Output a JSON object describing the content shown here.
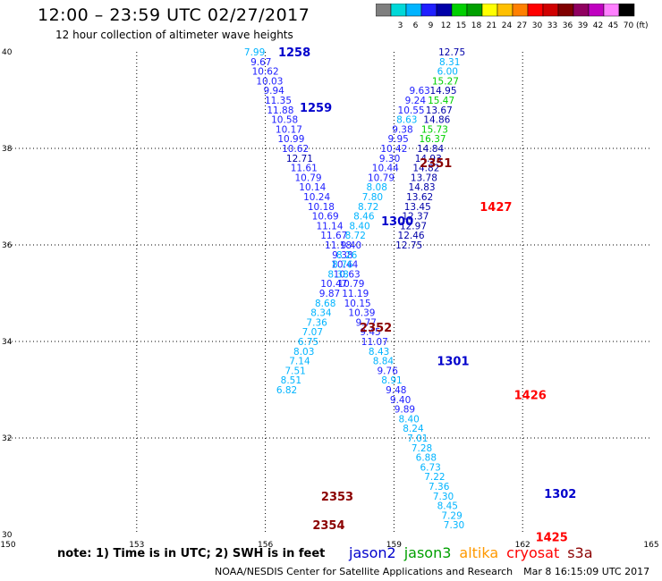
{
  "header": {
    "title": "12:00 – 23:59 UTC 02/27/2017",
    "subtitle": "12 hour collection of altimeter wave heights"
  },
  "colorbar": {
    "unit": "(ft)",
    "swatches": [
      {
        "label": "",
        "color": "#7f7f7f"
      },
      {
        "label": "3",
        "color": "#00d8d8"
      },
      {
        "label": "6",
        "color": "#00b4ff"
      },
      {
        "label": "9",
        "color": "#2020ff"
      },
      {
        "label": "12",
        "color": "#0000a8"
      },
      {
        "label": "15",
        "color": "#00d000"
      },
      {
        "label": "18",
        "color": "#00a000"
      },
      {
        "label": "21",
        "color": "#ffff00"
      },
      {
        "label": "24",
        "color": "#ffc000"
      },
      {
        "label": "27",
        "color": "#ff8000"
      },
      {
        "label": "30",
        "color": "#ff0000"
      },
      {
        "label": "33",
        "color": "#d00000"
      },
      {
        "label": "36",
        "color": "#800000"
      },
      {
        "label": "39",
        "color": "#900060"
      },
      {
        "label": "42",
        "color": "#c000c0"
      },
      {
        "label": "45",
        "color": "#ff80ff"
      },
      {
        "label": "70",
        "color": "#000000"
      }
    ]
  },
  "footer": {
    "note": "note: 1) Time is in UTC; 2) SWH is in feet",
    "satellites": [
      {
        "name": "jason2",
        "color": "#0000cc"
      },
      {
        "name": "jason3",
        "color": "#00a000"
      },
      {
        "name": "altika",
        "color": "#ff9900"
      },
      {
        "name": "cryosat",
        "color": "#ff0000"
      },
      {
        "name": "s3a",
        "color": "#8b0000"
      }
    ],
    "credit": "NOAA/NESDIS Center for Satellite Applications and Research",
    "generated": "Mar  8 16:15:09 UTC 2017"
  },
  "chart_data": {
    "type": "scatter",
    "title": "12:00 – 23:59 UTC 02/27/2017",
    "subtitle": "12 hour collection of altimeter wave heights",
    "xlim": [
      150,
      165
    ],
    "ylim": [
      30,
      40
    ],
    "x_ticks": [
      150,
      153,
      156,
      159,
      162,
      165
    ],
    "y_ticks": [
      30,
      32,
      34,
      36,
      38,
      40
    ],
    "grid": "dotted",
    "color_scale": {
      "bounds": [
        3,
        6,
        9,
        12,
        15,
        18,
        21,
        24,
        27,
        30,
        33,
        36,
        39,
        42,
        45,
        70
      ],
      "colors": [
        "#7f7f7f",
        "#00d8d8",
        "#00b4ff",
        "#2020ff",
        "#0000a8",
        "#00d000",
        "#00a000",
        "#ffff00",
        "#ffc000",
        "#ff8000",
        "#ff0000",
        "#d00000",
        "#800000",
        "#900060",
        "#c000c0",
        "#ff80ff",
        "#000000"
      ]
    },
    "pass_labels": [
      {
        "text": "1258",
        "x": 156.3,
        "y": 40.0,
        "satellite": "jason2"
      },
      {
        "text": "1259",
        "x": 156.8,
        "y": 38.85,
        "satellite": "jason2"
      },
      {
        "text": "1300",
        "x": 158.7,
        "y": 36.5,
        "satellite": "jason2"
      },
      {
        "text": "1301",
        "x": 160.0,
        "y": 33.6,
        "satellite": "jason2"
      },
      {
        "text": "1302",
        "x": 162.5,
        "y": 30.85,
        "satellite": "jason2"
      },
      {
        "text": "1426",
        "x": 161.8,
        "y": 32.9,
        "satellite": "cryosat"
      },
      {
        "text": "1427",
        "x": 161.0,
        "y": 36.8,
        "satellite": "cryosat"
      },
      {
        "text": "1425",
        "x": 162.3,
        "y": 29.95,
        "satellite": "cryosat"
      },
      {
        "text": "2351",
        "x": 159.6,
        "y": 37.7,
        "satellite": "s3a"
      },
      {
        "text": "2352",
        "x": 158.2,
        "y": 34.3,
        "satellite": "s3a"
      },
      {
        "text": "2353",
        "x": 157.3,
        "y": 30.8,
        "satellite": "s3a"
      },
      {
        "text": "2354",
        "x": 157.1,
        "y": 30.2,
        "satellite": "s3a"
      }
    ],
    "series": [
      {
        "name": "jason2 pass 1258/1259",
        "satellite": "jason2",
        "points": [
          {
            "x": 155.75,
            "y": 40.0,
            "v": 7.99
          },
          {
            "x": 155.9,
            "y": 39.8,
            "v": 9.67
          },
          {
            "x": 156.0,
            "y": 39.6,
            "v": 10.62
          },
          {
            "x": 156.1,
            "y": 39.4,
            "v": 10.03
          },
          {
            "x": 156.2,
            "y": 39.2,
            "v": 9.94
          },
          {
            "x": 156.3,
            "y": 39.0,
            "v": 11.35
          },
          {
            "x": 156.35,
            "y": 38.8,
            "v": 11.88
          },
          {
            "x": 156.45,
            "y": 38.6,
            "v": 10.58
          },
          {
            "x": 156.55,
            "y": 38.4,
            "v": 10.17
          },
          {
            "x": 156.6,
            "y": 38.2,
            "v": 10.99
          },
          {
            "x": 156.7,
            "y": 38.0,
            "v": 10.62
          },
          {
            "x": 156.8,
            "y": 37.8,
            "v": 12.71
          },
          {
            "x": 156.9,
            "y": 37.6,
            "v": 11.61
          },
          {
            "x": 157.0,
            "y": 37.4,
            "v": 10.79
          },
          {
            "x": 157.1,
            "y": 37.2,
            "v": 10.14
          },
          {
            "x": 157.2,
            "y": 37.0,
            "v": 10.24
          },
          {
            "x": 157.3,
            "y": 36.8,
            "v": 10.18
          },
          {
            "x": 157.4,
            "y": 36.6,
            "v": 10.69
          },
          {
            "x": 157.5,
            "y": 36.4,
            "v": 11.14
          },
          {
            "x": 157.6,
            "y": 36.2,
            "v": 11.67
          },
          {
            "x": 157.7,
            "y": 36.0,
            "v": 11.18
          },
          {
            "x": 157.8,
            "y": 35.8,
            "v": 9.38
          },
          {
            "x": 157.85,
            "y": 35.6,
            "v": 10.44
          },
          {
            "x": 157.9,
            "y": 35.4,
            "v": 10.63
          },
          {
            "x": 158.0,
            "y": 35.2,
            "v": 10.79
          },
          {
            "x": 158.1,
            "y": 35.0,
            "v": 11.19
          },
          {
            "x": 158.15,
            "y": 34.8,
            "v": 10.15
          },
          {
            "x": 158.25,
            "y": 34.6,
            "v": 10.39
          },
          {
            "x": 158.35,
            "y": 34.4,
            "v": 9.77
          },
          {
            "x": 158.45,
            "y": 34.2,
            "v": 9.45
          },
          {
            "x": 158.55,
            "y": 34.0,
            "v": 11.07
          },
          {
            "x": 158.65,
            "y": 33.8,
            "v": 8.43
          },
          {
            "x": 158.75,
            "y": 33.6,
            "v": 8.84
          },
          {
            "x": 158.85,
            "y": 33.4,
            "v": 9.76
          },
          {
            "x": 158.95,
            "y": 33.2,
            "v": 8.91
          },
          {
            "x": 159.05,
            "y": 33.0,
            "v": 9.48
          },
          {
            "x": 159.15,
            "y": 32.8,
            "v": 9.4
          },
          {
            "x": 159.25,
            "y": 32.6,
            "v": 9.89
          },
          {
            "x": 159.35,
            "y": 32.4,
            "v": 8.4
          },
          {
            "x": 159.45,
            "y": 32.2,
            "v": 8.24
          },
          {
            "x": 159.55,
            "y": 32.0,
            "v": 7.01
          },
          {
            "x": 159.65,
            "y": 31.8,
            "v": 7.28
          },
          {
            "x": 159.75,
            "y": 31.6,
            "v": 6.88
          },
          {
            "x": 159.85,
            "y": 31.4,
            "v": 6.73
          },
          {
            "x": 159.95,
            "y": 31.2,
            "v": 7.22
          },
          {
            "x": 160.05,
            "y": 31.0,
            "v": 7.36
          },
          {
            "x": 160.15,
            "y": 30.8,
            "v": 7.3
          },
          {
            "x": 160.25,
            "y": 30.6,
            "v": 8.45
          },
          {
            "x": 160.35,
            "y": 30.4,
            "v": 7.29
          },
          {
            "x": 160.4,
            "y": 30.2,
            "v": 7.3
          }
        ]
      },
      {
        "name": "s3a pass 2352/2353",
        "satellite": "s3a",
        "points": [
          {
            "x": 159.6,
            "y": 39.2,
            "v": 9.63
          },
          {
            "x": 159.5,
            "y": 39.0,
            "v": 9.24
          },
          {
            "x": 159.4,
            "y": 38.8,
            "v": 10.55
          },
          {
            "x": 159.3,
            "y": 38.6,
            "v": 8.63
          },
          {
            "x": 159.2,
            "y": 38.4,
            "v": 9.38
          },
          {
            "x": 159.1,
            "y": 38.2,
            "v": 9.95
          },
          {
            "x": 159.0,
            "y": 38.0,
            "v": 10.42
          },
          {
            "x": 158.9,
            "y": 37.8,
            "v": 9.3
          },
          {
            "x": 158.8,
            "y": 37.6,
            "v": 10.44
          },
          {
            "x": 158.7,
            "y": 37.4,
            "v": 10.79
          },
          {
            "x": 158.6,
            "y": 37.2,
            "v": 8.08
          },
          {
            "x": 158.5,
            "y": 37.0,
            "v": 7.8
          },
          {
            "x": 158.4,
            "y": 36.8,
            "v": 8.72
          },
          {
            "x": 158.3,
            "y": 36.6,
            "v": 8.46
          },
          {
            "x": 158.2,
            "y": 36.4,
            "v": 8.4
          },
          {
            "x": 158.1,
            "y": 36.2,
            "v": 8.72
          },
          {
            "x": 158.0,
            "y": 36.0,
            "v": 9.4
          },
          {
            "x": 157.9,
            "y": 35.8,
            "v": 8.26
          },
          {
            "x": 157.8,
            "y": 35.6,
            "v": 8.76
          },
          {
            "x": 157.7,
            "y": 35.4,
            "v": 8.38
          },
          {
            "x": 157.6,
            "y": 35.2,
            "v": 10.47
          },
          {
            "x": 157.5,
            "y": 35.0,
            "v": 9.87
          },
          {
            "x": 157.4,
            "y": 34.8,
            "v": 8.68
          },
          {
            "x": 157.3,
            "y": 34.6,
            "v": 8.34
          },
          {
            "x": 157.2,
            "y": 34.4,
            "v": 7.36
          },
          {
            "x": 157.1,
            "y": 34.2,
            "v": 7.07
          },
          {
            "x": 157.0,
            "y": 34.0,
            "v": 6.75
          },
          {
            "x": 156.9,
            "y": 33.8,
            "v": 8.03
          },
          {
            "x": 156.8,
            "y": 33.6,
            "v": 7.14
          },
          {
            "x": 156.7,
            "y": 33.4,
            "v": 7.51
          },
          {
            "x": 156.6,
            "y": 33.2,
            "v": 8.51
          },
          {
            "x": 156.5,
            "y": 33.0,
            "v": 6.82
          }
        ]
      },
      {
        "name": "jason3 pass 1427",
        "satellite": "jason3",
        "points": [
          {
            "x": 160.35,
            "y": 40.0,
            "v": 12.75
          },
          {
            "x": 160.3,
            "y": 39.8,
            "v": 8.31
          },
          {
            "x": 160.25,
            "y": 39.6,
            "v": 6.0
          },
          {
            "x": 160.2,
            "y": 39.4,
            "v": 15.27
          },
          {
            "x": 160.15,
            "y": 39.2,
            "v": 14.95
          },
          {
            "x": 160.1,
            "y": 39.0,
            "v": 15.47
          },
          {
            "x": 160.05,
            "y": 38.8,
            "v": 13.67
          },
          {
            "x": 160.0,
            "y": 38.6,
            "v": 14.86
          },
          {
            "x": 159.95,
            "y": 38.4,
            "v": 15.73
          },
          {
            "x": 159.9,
            "y": 38.2,
            "v": 16.37
          },
          {
            "x": 159.85,
            "y": 38.0,
            "v": 14.84
          },
          {
            "x": 159.8,
            "y": 37.8,
            "v": 14.93
          },
          {
            "x": 159.75,
            "y": 37.6,
            "v": 14.82
          },
          {
            "x": 159.7,
            "y": 37.4,
            "v": 13.78
          },
          {
            "x": 159.65,
            "y": 37.2,
            "v": 14.83
          },
          {
            "x": 159.6,
            "y": 37.0,
            "v": 13.62
          },
          {
            "x": 159.55,
            "y": 36.8,
            "v": 13.45
          },
          {
            "x": 159.5,
            "y": 36.6,
            "v": 12.37
          },
          {
            "x": 159.45,
            "y": 36.4,
            "v": 12.97
          },
          {
            "x": 159.4,
            "y": 36.2,
            "v": 12.46
          },
          {
            "x": 159.35,
            "y": 36.0,
            "v": 12.75
          }
        ]
      }
    ]
  }
}
